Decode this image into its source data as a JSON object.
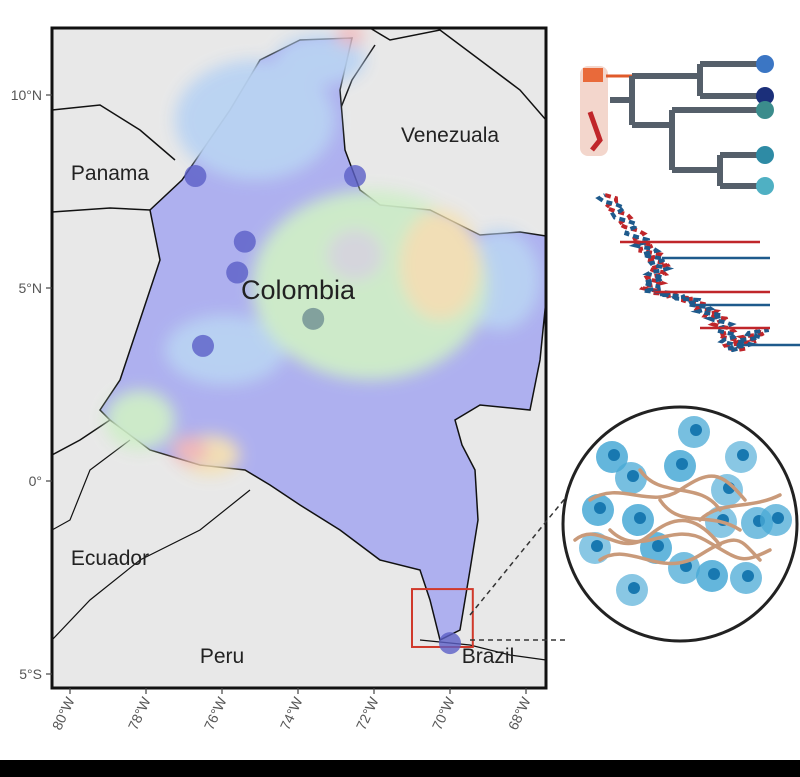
{
  "map": {
    "country_labels": {
      "panama": "Panama",
      "venezuela": "Venezuala",
      "colombia": "Colombia",
      "ecuador": "Ecuador",
      "peru": "Peru",
      "brazil": "Brazil"
    },
    "lat_ticks": [
      "10°N",
      "5°N",
      "0°",
      "5°S"
    ],
    "lon_ticks": [
      "80°W",
      "78°W",
      "76°W",
      "74°W",
      "72°W",
      "70°W",
      "68°W"
    ],
    "sample_sites": [
      {
        "lon": -76.7,
        "lat": 7.9,
        "color": "#5b5fc7"
      },
      {
        "lon": -72.5,
        "lat": 7.9,
        "color": "#5b5fc7"
      },
      {
        "lon": -75.4,
        "lat": 6.2,
        "color": "#5b5fc7"
      },
      {
        "lon": -75.6,
        "lat": 5.4,
        "color": "#5b5fc7"
      },
      {
        "lon": -73.6,
        "lat": 4.2,
        "color": "#6f8f92"
      },
      {
        "lon": -76.5,
        "lat": 3.5,
        "color": "#5b5fc7"
      },
      {
        "lon": -70.0,
        "lat": -4.2,
        "color": "#5b5fc7"
      }
    ],
    "inset_box": {
      "lon_min": -71.0,
      "lon_max": -69.4,
      "lat_min": -4.3,
      "lat_max": -2.8
    },
    "colors": {
      "land": "#e8e8e8",
      "border": "#111111",
      "zone_main": "#aeb0ef",
      "zone_light_blue": "#b9d3f3",
      "zone_green": "#cfeec8",
      "zone_yellow": "#f5e1b3",
      "zone_grey": "#d8d8dc",
      "zone_pink": "#f3b7b7",
      "inset_frame": "#d0392b"
    }
  },
  "tree": {
    "tip_colors": [
      "#3b76c4",
      "#1b2f7a",
      "#3b8c8c",
      "#2e8ba5",
      "#4fb0c3"
    ],
    "branch_color": "#555f6a",
    "highlight_color": "#e05a2a"
  },
  "dna": {
    "strand_colors": [
      "#c0262a",
      "#1e5a8c"
    ]
  },
  "cells": {
    "cell_color": "#49a9d6",
    "cell_dark": "#1878b0",
    "parasite_color": "#c99a7a"
  }
}
